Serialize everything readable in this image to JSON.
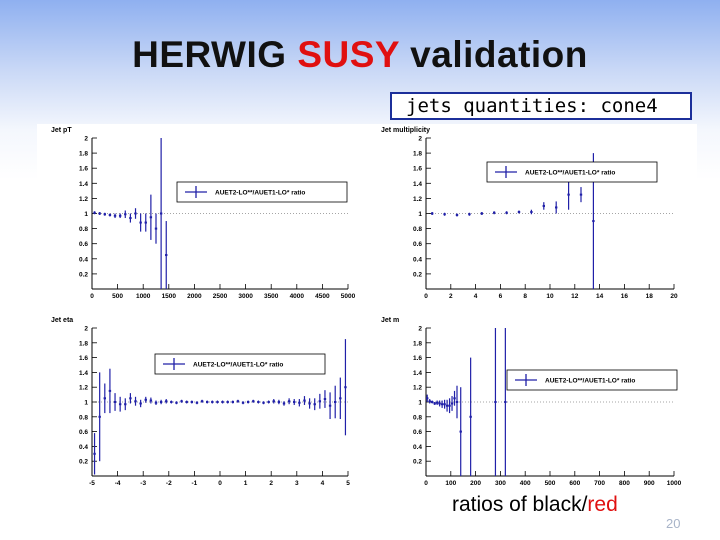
{
  "slide": {
    "title_part1": "HERWIG ",
    "title_highlight": "SUSY",
    "title_part2": " validation",
    "subtitle": "jets quantities: cone4",
    "caption_part1": "ratios of ",
    "caption_black": "black/",
    "caption_red": "red",
    "page_number": "20",
    "colors": {
      "highlight": "#e01010",
      "series": "#2020a8",
      "box_border": "#1c2f9a"
    }
  },
  "chart_data": [
    {
      "type": "scatter",
      "title": "Jet pT",
      "legend": "AUET2-LO**/AUET1-LO* ratio",
      "xlim": [
        0,
        5000
      ],
      "ylim": [
        0,
        2
      ],
      "xticks": [
        "0",
        "500",
        "1000",
        "1500",
        "2000",
        "2500",
        "3000",
        "3500",
        "4000",
        "4500",
        "5000"
      ],
      "yticks": [
        "0.2",
        "0.4",
        "0.6",
        "0.8",
        "1",
        "1.2",
        "1.4",
        "1.6",
        "1.8",
        "2"
      ],
      "points": [
        {
          "x": 50,
          "y": 1.01,
          "err": 0.02
        },
        {
          "x": 150,
          "y": 1.0,
          "err": 0.02
        },
        {
          "x": 250,
          "y": 0.99,
          "err": 0.02
        },
        {
          "x": 350,
          "y": 0.98,
          "err": 0.02
        },
        {
          "x": 450,
          "y": 0.97,
          "err": 0.03
        },
        {
          "x": 550,
          "y": 0.97,
          "err": 0.03
        },
        {
          "x": 650,
          "y": 0.99,
          "err": 0.05
        },
        {
          "x": 750,
          "y": 0.94,
          "err": 0.06
        },
        {
          "x": 850,
          "y": 1.0,
          "err": 0.07
        },
        {
          "x": 950,
          "y": 0.88,
          "err": 0.12
        },
        {
          "x": 1050,
          "y": 0.88,
          "err": 0.12
        },
        {
          "x": 1150,
          "y": 0.95,
          "err": 0.3
        },
        {
          "x": 1250,
          "y": 0.8,
          "err": 0.2
        },
        {
          "x": 1350,
          "y": 1.0,
          "err": 1.0
        },
        {
          "x": 1450,
          "y": 0.45,
          "err": 0.45
        }
      ]
    },
    {
      "type": "scatter",
      "title": "Jet multiplicity",
      "legend": "AUET2-LO**/AUET1-LO* ratio",
      "xlim": [
        0,
        20
      ],
      "ylim": [
        0,
        2
      ],
      "xticks": [
        "0",
        "2",
        "4",
        "6",
        "8",
        "10",
        "12",
        "14",
        "16",
        "18",
        "20"
      ],
      "yticks": [
        "0.2",
        "0.4",
        "0.6",
        "0.8",
        "1",
        "1.2",
        "1.4",
        "1.6",
        "1.8",
        "2"
      ],
      "points": [
        {
          "x": 0.5,
          "y": 1.0,
          "err": 0.02
        },
        {
          "x": 1.5,
          "y": 0.99,
          "err": 0.02
        },
        {
          "x": 2.5,
          "y": 0.98,
          "err": 0.02
        },
        {
          "x": 3.5,
          "y": 0.99,
          "err": 0.02
        },
        {
          "x": 4.5,
          "y": 1.0,
          "err": 0.02
        },
        {
          "x": 5.5,
          "y": 1.01,
          "err": 0.02
        },
        {
          "x": 6.5,
          "y": 1.01,
          "err": 0.02
        },
        {
          "x": 7.5,
          "y": 1.02,
          "err": 0.02
        },
        {
          "x": 8.5,
          "y": 1.02,
          "err": 0.03
        },
        {
          "x": 9.5,
          "y": 1.1,
          "err": 0.05
        },
        {
          "x": 10.5,
          "y": 1.08,
          "err": 0.08
        },
        {
          "x": 11.5,
          "y": 1.25,
          "err": 0.2
        },
        {
          "x": 12.5,
          "y": 1.25,
          "err": 0.1
        },
        {
          "x": 13.5,
          "y": 0.9,
          "err": 0.9
        }
      ]
    },
    {
      "type": "scatter",
      "title": "Jet eta",
      "legend": "AUET2-LO**/AUET1-LO* ratio",
      "xlim": [
        -5,
        5
      ],
      "ylim": [
        0,
        2
      ],
      "xticks": [
        "-5",
        "-4",
        "-3",
        "-2",
        "-1",
        "0",
        "1",
        "2",
        "3",
        "4",
        "5"
      ],
      "yticks": [
        "0.2",
        "0.4",
        "0.6",
        "0.8",
        "1",
        "1.2",
        "1.4",
        "1.6",
        "1.8",
        "2"
      ],
      "points": [
        {
          "x": -4.9,
          "y": 0.3,
          "err": 0.28
        },
        {
          "x": -4.7,
          "y": 0.8,
          "err": 0.6
        },
        {
          "x": -4.5,
          "y": 1.05,
          "err": 0.2
        },
        {
          "x": -4.3,
          "y": 1.15,
          "err": 0.3
        },
        {
          "x": -4.1,
          "y": 1.0,
          "err": 0.12
        },
        {
          "x": -3.9,
          "y": 0.97,
          "err": 0.1
        },
        {
          "x": -3.7,
          "y": 0.97,
          "err": 0.08
        },
        {
          "x": -3.5,
          "y": 1.05,
          "err": 0.07
        },
        {
          "x": -3.3,
          "y": 1.01,
          "err": 0.06
        },
        {
          "x": -3.1,
          "y": 0.98,
          "err": 0.05
        },
        {
          "x": -2.9,
          "y": 1.03,
          "err": 0.04
        },
        {
          "x": -2.7,
          "y": 1.02,
          "err": 0.04
        },
        {
          "x": -2.5,
          "y": 0.99,
          "err": 0.03
        },
        {
          "x": -2.3,
          "y": 1.0,
          "err": 0.03
        },
        {
          "x": -2.1,
          "y": 1.01,
          "err": 0.03
        },
        {
          "x": -1.9,
          "y": 1.0,
          "err": 0.02
        },
        {
          "x": -1.7,
          "y": 0.99,
          "err": 0.02
        },
        {
          "x": -1.5,
          "y": 1.01,
          "err": 0.02
        },
        {
          "x": -1.3,
          "y": 1.0,
          "err": 0.02
        },
        {
          "x": -1.1,
          "y": 1.0,
          "err": 0.02
        },
        {
          "x": -0.9,
          "y": 0.99,
          "err": 0.02
        },
        {
          "x": -0.7,
          "y": 1.01,
          "err": 0.02
        },
        {
          "x": -0.5,
          "y": 1.0,
          "err": 0.02
        },
        {
          "x": -0.3,
          "y": 1.0,
          "err": 0.02
        },
        {
          "x": -0.1,
          "y": 1.0,
          "err": 0.02
        },
        {
          "x": 0.1,
          "y": 1.0,
          "err": 0.02
        },
        {
          "x": 0.3,
          "y": 1.0,
          "err": 0.02
        },
        {
          "x": 0.5,
          "y": 1.0,
          "err": 0.02
        },
        {
          "x": 0.7,
          "y": 1.01,
          "err": 0.02
        },
        {
          "x": 0.9,
          "y": 0.99,
          "err": 0.02
        },
        {
          "x": 1.1,
          "y": 1.0,
          "err": 0.02
        },
        {
          "x": 1.3,
          "y": 1.01,
          "err": 0.02
        },
        {
          "x": 1.5,
          "y": 1.0,
          "err": 0.02
        },
        {
          "x": 1.7,
          "y": 0.99,
          "err": 0.02
        },
        {
          "x": 1.9,
          "y": 1.0,
          "err": 0.02
        },
        {
          "x": 2.1,
          "y": 1.01,
          "err": 0.03
        },
        {
          "x": 2.3,
          "y": 1.0,
          "err": 0.03
        },
        {
          "x": 2.5,
          "y": 0.98,
          "err": 0.03
        },
        {
          "x": 2.7,
          "y": 1.01,
          "err": 0.04
        },
        {
          "x": 2.9,
          "y": 1.0,
          "err": 0.04
        },
        {
          "x": 3.1,
          "y": 0.99,
          "err": 0.05
        },
        {
          "x": 3.3,
          "y": 1.02,
          "err": 0.06
        },
        {
          "x": 3.5,
          "y": 0.98,
          "err": 0.07
        },
        {
          "x": 3.7,
          "y": 0.97,
          "err": 0.08
        },
        {
          "x": 3.9,
          "y": 1.01,
          "err": 0.1
        },
        {
          "x": 4.1,
          "y": 1.04,
          "err": 0.12
        },
        {
          "x": 4.3,
          "y": 0.95,
          "err": 0.18
        },
        {
          "x": 4.5,
          "y": 1.0,
          "err": 0.22
        },
        {
          "x": 4.7,
          "y": 1.05,
          "err": 0.28
        },
        {
          "x": 4.9,
          "y": 1.2,
          "err": 0.65
        }
      ]
    },
    {
      "type": "scatter",
      "title": "Jet m",
      "legend": "AUET2-LO**/AUET1-LO* ratio",
      "xlim": [
        0,
        1000
      ],
      "ylim": [
        0,
        2
      ],
      "xticks": [
        "0",
        "100",
        "200",
        "300",
        "400",
        "500",
        "600",
        "700",
        "800",
        "900",
        "1000"
      ],
      "yticks": [
        "0.2",
        "0.4",
        "0.6",
        "0.8",
        "1",
        "1.2",
        "1.4",
        "1.6",
        "1.8",
        "2"
      ],
      "points": [
        {
          "x": 5,
          "y": 1.05,
          "err": 0.05
        },
        {
          "x": 15,
          "y": 1.01,
          "err": 0.03
        },
        {
          "x": 25,
          "y": 1.0,
          "err": 0.02
        },
        {
          "x": 35,
          "y": 0.98,
          "err": 0.02
        },
        {
          "x": 45,
          "y": 0.99,
          "err": 0.03
        },
        {
          "x": 55,
          "y": 0.98,
          "err": 0.04
        },
        {
          "x": 65,
          "y": 0.97,
          "err": 0.05
        },
        {
          "x": 75,
          "y": 0.97,
          "err": 0.06
        },
        {
          "x": 85,
          "y": 0.95,
          "err": 0.08
        },
        {
          "x": 95,
          "y": 0.95,
          "err": 0.1
        },
        {
          "x": 105,
          "y": 0.98,
          "err": 0.1
        },
        {
          "x": 115,
          "y": 1.05,
          "err": 0.1
        },
        {
          "x": 125,
          "y": 1.0,
          "err": 0.22
        },
        {
          "x": 140,
          "y": 0.6,
          "err": 0.6
        },
        {
          "x": 180,
          "y": 0.8,
          "err": 0.8
        },
        {
          "x": 280,
          "y": 1.0,
          "err": 1.0
        },
        {
          "x": 320,
          "y": 1.0,
          "err": 1.0
        }
      ]
    }
  ]
}
